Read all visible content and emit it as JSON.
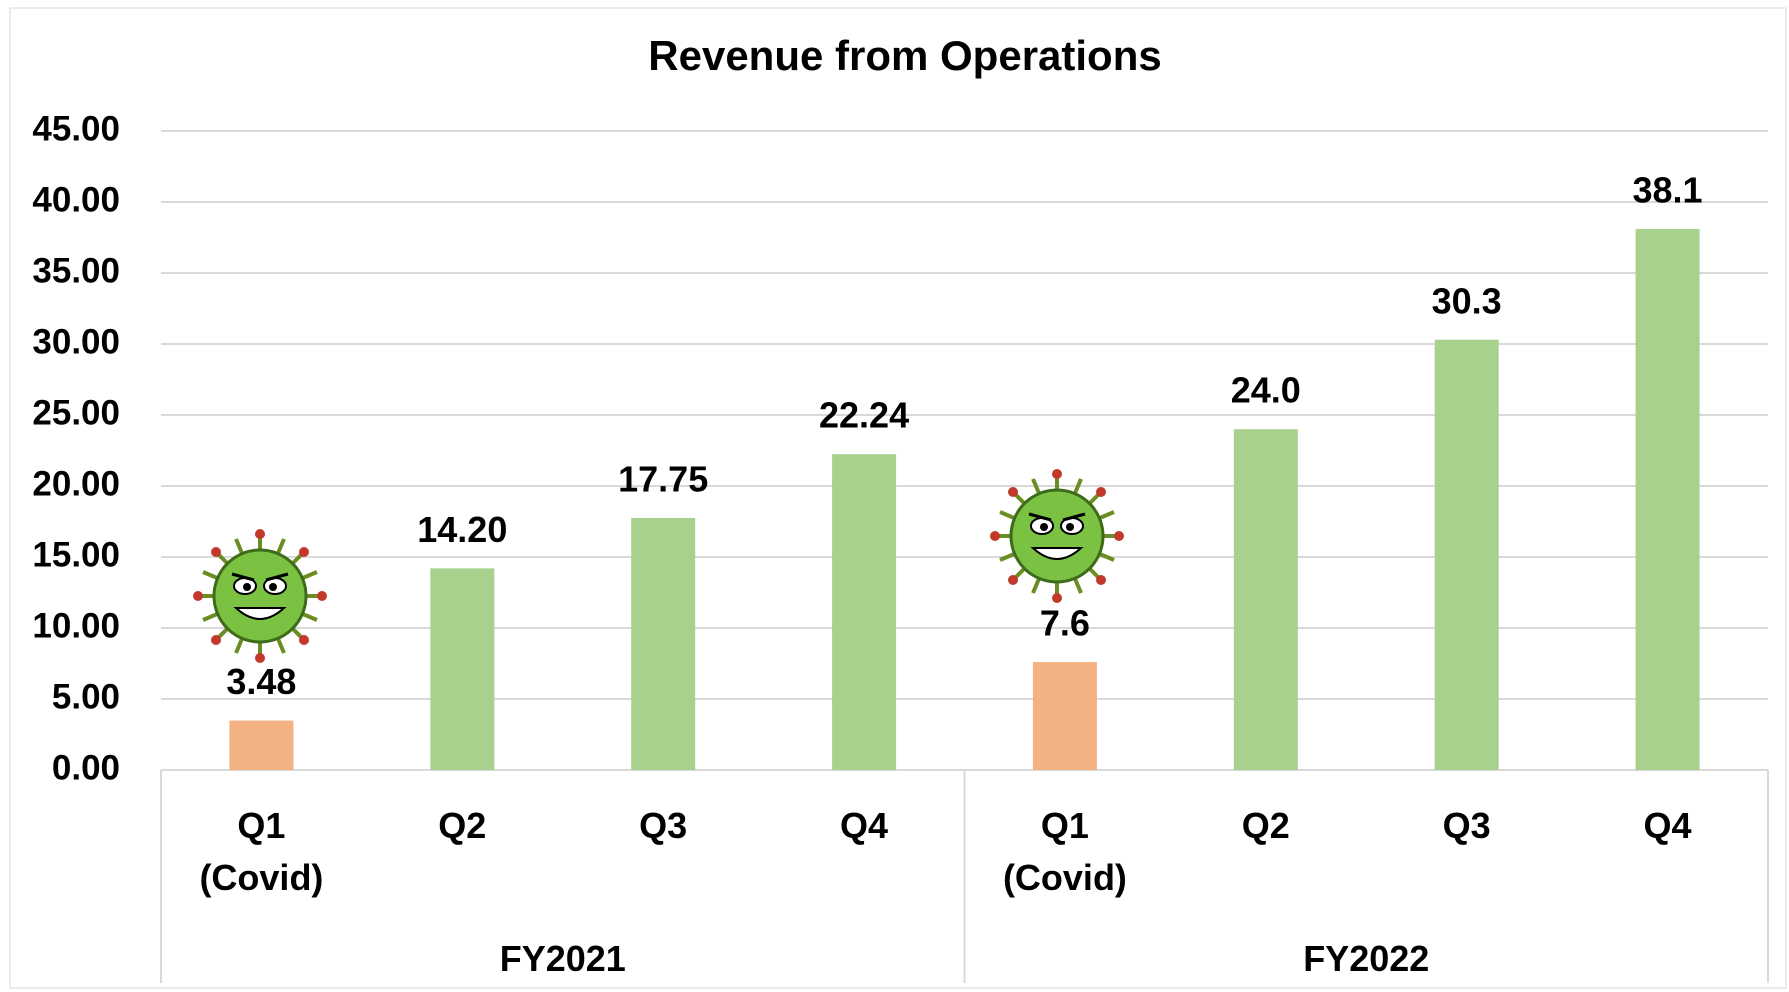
{
  "chart_data": {
    "type": "bar",
    "title": "Revenue from Operations",
    "categories": [
      "Q1 (Covid)",
      "Q2",
      "Q3",
      "Q4",
      "Q1 (Covid)",
      "Q2",
      "Q3",
      "Q4"
    ],
    "groups": [
      "FY2021",
      "FY2022"
    ],
    "values": [
      3.48,
      14.2,
      17.75,
      22.24,
      7.6,
      24.0,
      30.3,
      38.1
    ],
    "value_labels": [
      "3.48",
      "14.20",
      "17.75",
      "22.24",
      "7.6",
      "24.0",
      "30.3",
      "38.1"
    ],
    "colors": [
      "#f4b183",
      "#a9d18e",
      "#a9d18e",
      "#a9d18e",
      "#f4b183",
      "#a9d18e",
      "#a9d18e",
      "#a9d18e"
    ],
    "ylim": [
      0,
      45
    ],
    "yticks": [
      {
        "value": 0,
        "label": "0.00"
      },
      {
        "value": 5,
        "label": "5.00"
      },
      {
        "value": 10,
        "label": "10.00"
      },
      {
        "value": 15,
        "label": "15.00"
      },
      {
        "value": 20,
        "label": "20.00"
      },
      {
        "value": 25,
        "label": "25.00"
      },
      {
        "value": 30,
        "label": "30.00"
      },
      {
        "value": 35,
        "label": "35.00"
      },
      {
        "value": 40,
        "label": "40.00"
      },
      {
        "value": 45,
        "label": "45.00"
      }
    ],
    "grid": true
  }
}
